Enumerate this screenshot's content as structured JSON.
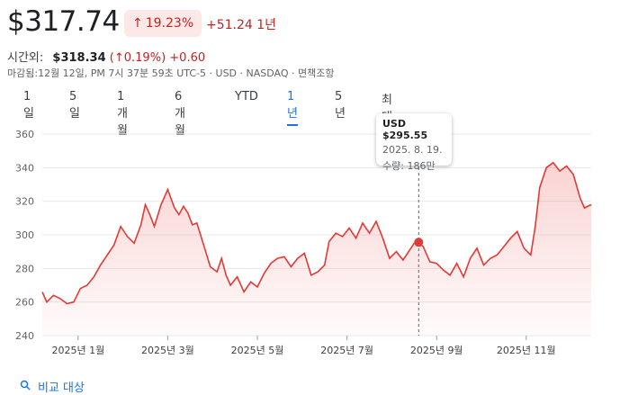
{
  "header": {
    "price": "$317.74",
    "change_pct": "19.23%",
    "change_abs": "+51.24 1년",
    "after_hours_label": "시간외:",
    "after_hours_price": "$318.34",
    "after_hours_change_pct": "0.19%",
    "after_hours_change_abs": "+0.60",
    "close_info": "마감됨:12월 12일, PM 7시 37분 59초 UTC-5 · USD · NASDAQ · 면책조항"
  },
  "tabs": [
    {
      "label": "1일",
      "active": false
    },
    {
      "label": "5일",
      "active": false
    },
    {
      "label": "1개월",
      "active": false
    },
    {
      "label": "6개월",
      "active": false
    },
    {
      "label": "YTD",
      "active": false
    },
    {
      "label": "1년",
      "active": true
    },
    {
      "label": "5년",
      "active": false
    },
    {
      "label": "최대",
      "active": false
    }
  ],
  "tooltip": {
    "price": "USD $295.55",
    "date": "2025. 8. 19.",
    "volume": "수량: 186만"
  },
  "compare_label": "비교 대상",
  "colors": {
    "negative": "#c5221f",
    "accent": "#1a73e8",
    "line": "#e53935"
  },
  "icons": [
    "arrow-up-icon",
    "search-icon"
  ],
  "chart_data": {
    "type": "area",
    "y_ticks": [
      "360",
      "340",
      "320",
      "300",
      "280",
      "260",
      "240"
    ],
    "ylim": [
      240,
      360
    ],
    "x_tick_labels": [
      "2025년 1월",
      "2025년 3월",
      "2025년 5월",
      "2025년 7월",
      "2025년 9월",
      "2025년 11월"
    ],
    "x_tick_months": [
      1,
      3,
      5,
      7,
      9,
      11
    ],
    "xlim_months": [
      0.2,
      12.45
    ],
    "grid": true,
    "hover": {
      "month": 8.6,
      "value": 295.55
    },
    "series": [
      {
        "month": [
          0.2,
          0.3,
          0.45,
          0.6,
          0.75,
          0.9,
          1.05,
          1.2,
          1.35,
          1.5,
          1.65,
          1.8,
          1.95,
          2.1,
          2.25,
          2.4,
          2.5,
          2.6,
          2.7,
          2.85,
          3.0,
          3.15,
          3.25,
          3.35,
          3.45,
          3.55,
          3.65,
          3.8,
          3.95,
          4.1,
          4.2,
          4.3,
          4.4,
          4.55,
          4.7,
          4.85,
          5.0,
          5.15,
          5.3,
          5.45,
          5.6,
          5.75,
          5.9,
          6.05,
          6.2,
          6.35,
          6.5,
          6.6,
          6.75,
          6.9,
          7.05,
          7.2,
          7.35,
          7.5,
          7.65,
          7.8,
          7.95,
          8.1,
          8.25,
          8.4,
          8.5,
          8.6,
          8.7,
          8.85,
          9.0,
          9.15,
          9.3,
          9.45,
          9.6,
          9.75,
          9.9,
          10.05,
          10.2,
          10.35,
          10.5,
          10.65,
          10.8,
          10.95,
          11.1,
          11.2,
          11.3,
          11.45,
          11.6,
          11.75,
          11.9,
          12.05,
          12.2,
          12.3,
          12.45
        ],
        "values": [
          266,
          260,
          264,
          262,
          259,
          260,
          268,
          270,
          275,
          282,
          288,
          294,
          305,
          299,
          295,
          306,
          318,
          312,
          305,
          318,
          327,
          316,
          312,
          317,
          313,
          306,
          307,
          294,
          281,
          278,
          286,
          276,
          270,
          275,
          266,
          272,
          269,
          277,
          283,
          286,
          287,
          281,
          286,
          289,
          276,
          278,
          282,
          296,
          301,
          299,
          304,
          298,
          307,
          301,
          308,
          298,
          286,
          290,
          285,
          291,
          295,
          295.55,
          293,
          284,
          283,
          279,
          276,
          283,
          275,
          286,
          292,
          282,
          286,
          288,
          293,
          298,
          302,
          292,
          288,
          305,
          328,
          340,
          343,
          338,
          341,
          336,
          322,
          316,
          318
        ]
      }
    ]
  }
}
